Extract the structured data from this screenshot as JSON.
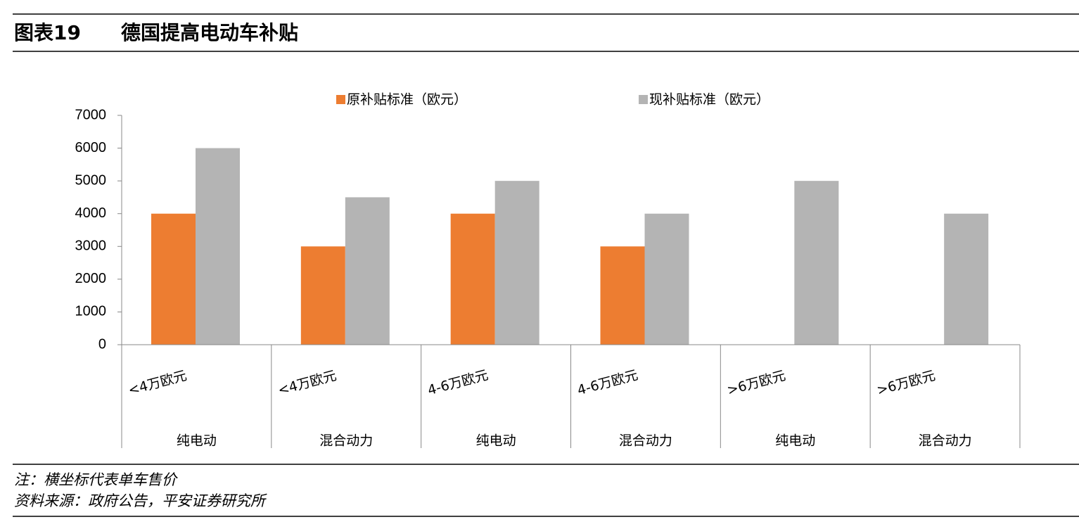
{
  "header": {
    "label": "图表19",
    "title": "德国提高电动车补贴"
  },
  "chart_data": {
    "type": "bar",
    "categories": [
      "<4万欧元",
      "<4万欧元",
      "4-6万欧元",
      "4-6万欧元",
      ">6万欧元",
      ">6万欧元"
    ],
    "category_groups": [
      "纯电动",
      "混合动力",
      "纯电动",
      "混合动力",
      "纯电动",
      "混合动力"
    ],
    "series": [
      {
        "name": "原补贴标准（欧元）",
        "color": "#ed7d31",
        "values": [
          4000,
          3000,
          4000,
          3000,
          null,
          null
        ]
      },
      {
        "name": "现补贴标准（欧元）",
        "color": "#b4b4b4",
        "values": [
          6000,
          4500,
          5000,
          4000,
          5000,
          4000
        ]
      }
    ],
    "ylim": [
      0,
      7000
    ],
    "yticks": [
      0,
      1000,
      2000,
      3000,
      4000,
      5000,
      6000,
      7000
    ],
    "grid": false,
    "legend": "top"
  },
  "notes": [
    "注：横坐标代表单车售价",
    "资料来源：政府公告，平安证券研究所"
  ]
}
